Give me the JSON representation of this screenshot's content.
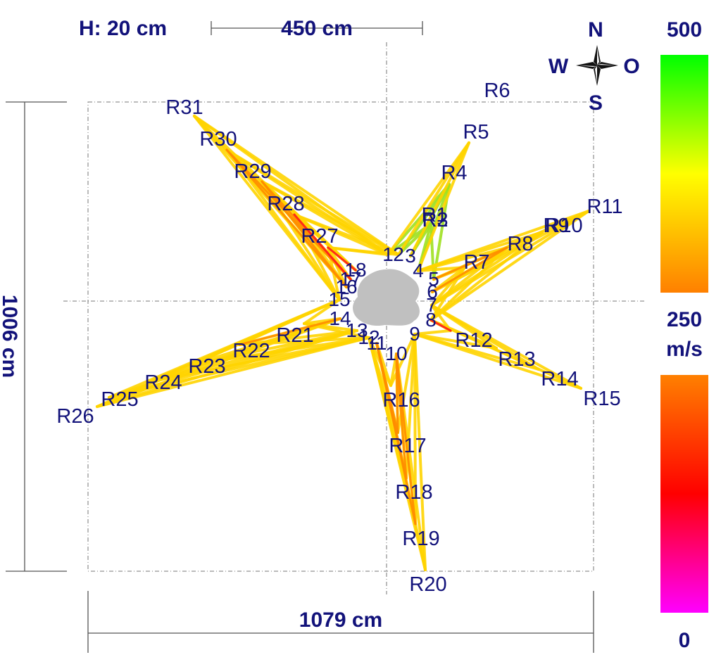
{
  "header": {
    "height_label": "H: 20 cm",
    "scale_label": "450 cm"
  },
  "dimensions": {
    "width_label": "1079 cm",
    "height_label": "1006 cm"
  },
  "compass": {
    "n": "N",
    "w": "W",
    "o": "O",
    "s": "S"
  },
  "colorbar": {
    "top_label": "500",
    "mid_label": "250",
    "unit_label": "m/s",
    "bottom_label": "0",
    "upper_gradient": [
      "#00ff00",
      "#ffff00",
      "#ff8000"
    ],
    "lower_gradient": [
      "#ff8000",
      "#ff0000",
      "#ff00ff"
    ]
  },
  "sensors": [
    "1",
    "2",
    "3",
    "4",
    "5",
    "6",
    "7",
    "8",
    "9",
    "10",
    "11",
    "12",
    "13",
    "14",
    "15",
    "16",
    "17",
    "18"
  ],
  "receivers": [
    "R1",
    "R2",
    "R3",
    "R4",
    "R5",
    "R6",
    "R7",
    "R8",
    "R9",
    "R10",
    "R11",
    "R12",
    "R13",
    "R14",
    "R15",
    "R16",
    "R17",
    "R18",
    "R19",
    "R20",
    "R21",
    "R22",
    "R23",
    "R24",
    "R25",
    "R26",
    "R27",
    "R28",
    "R29",
    "R30",
    "R31"
  ],
  "colors": {
    "text": "#12127a",
    "trunk": "#c0c0c0",
    "fast": "#9ee020",
    "medium": "#ffd400",
    "slow": "#ff8c00",
    "very_slow": "#ff1a1a"
  }
}
